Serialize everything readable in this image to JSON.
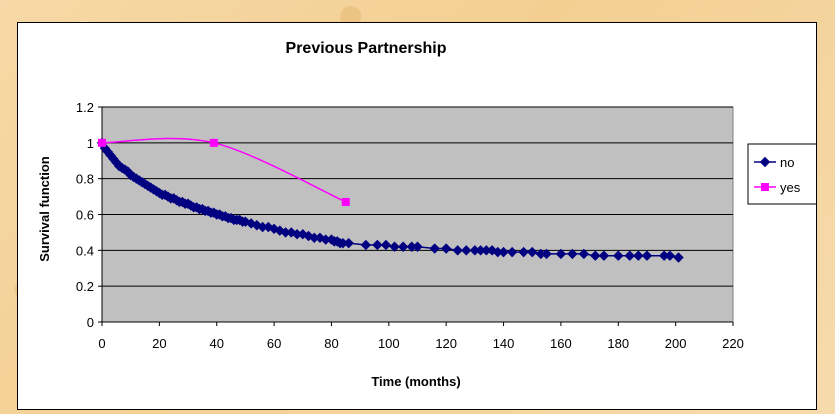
{
  "chart_data": {
    "type": "line",
    "title": "Previous Partnership",
    "xlabel": "Time (months)",
    "ylabel": "Survival function",
    "xlim": [
      0,
      220
    ],
    "ylim": [
      0,
      1.2
    ],
    "x_ticks": [
      0,
      20,
      40,
      60,
      80,
      100,
      120,
      140,
      160,
      180,
      200,
      220
    ],
    "y_ticks": [
      0,
      0.2,
      0.4,
      0.6,
      0.8,
      1,
      1.2
    ],
    "x_tick_labels": [
      "0",
      "20",
      "40",
      "60",
      "80",
      "100",
      "120",
      "140",
      "160",
      "180",
      "200",
      "220"
    ],
    "y_tick_labels": [
      "0",
      "0.2",
      "0.4",
      "0.6",
      "0.8",
      "1",
      "1.2"
    ],
    "grid": "horizontal",
    "plot_background": "#c0c0c0",
    "legend_position": "right",
    "series": [
      {
        "name": "no",
        "color": "#000080",
        "marker": "diamond",
        "smooth": false,
        "x": [
          0,
          1,
          2,
          3,
          4,
          5,
          6,
          7,
          8,
          9,
          10,
          11,
          12,
          13,
          14,
          15,
          16,
          17,
          18,
          19,
          20,
          21,
          22,
          23,
          24,
          25,
          26,
          27,
          28,
          29,
          30,
          31,
          32,
          33,
          34,
          35,
          36,
          37,
          38,
          39,
          40,
          41,
          42,
          43,
          44,
          45,
          46,
          47,
          48,
          49,
          50,
          52,
          54,
          56,
          58,
          60,
          62,
          64,
          66,
          68,
          70,
          72,
          74,
          76,
          78,
          80,
          81,
          82,
          83,
          84,
          86,
          92,
          96,
          99,
          102,
          105,
          108,
          110,
          116,
          120,
          124,
          127,
          130,
          132,
          134,
          136,
          138,
          140,
          143,
          147,
          150,
          153,
          155,
          160,
          164,
          168,
          172,
          175,
          180,
          184,
          187,
          190,
          196,
          198,
          201
        ],
        "values": [
          1.0,
          0.97,
          0.95,
          0.93,
          0.91,
          0.89,
          0.87,
          0.86,
          0.85,
          0.84,
          0.82,
          0.81,
          0.8,
          0.79,
          0.78,
          0.77,
          0.76,
          0.75,
          0.74,
          0.73,
          0.72,
          0.71,
          0.71,
          0.7,
          0.69,
          0.69,
          0.68,
          0.67,
          0.67,
          0.66,
          0.66,
          0.65,
          0.64,
          0.64,
          0.63,
          0.63,
          0.62,
          0.62,
          0.61,
          0.61,
          0.6,
          0.6,
          0.59,
          0.59,
          0.58,
          0.58,
          0.57,
          0.57,
          0.57,
          0.56,
          0.56,
          0.55,
          0.54,
          0.53,
          0.53,
          0.52,
          0.51,
          0.5,
          0.5,
          0.49,
          0.49,
          0.48,
          0.47,
          0.47,
          0.46,
          0.46,
          0.45,
          0.45,
          0.44,
          0.44,
          0.44,
          0.43,
          0.43,
          0.43,
          0.42,
          0.42,
          0.42,
          0.42,
          0.41,
          0.41,
          0.4,
          0.4,
          0.4,
          0.4,
          0.4,
          0.4,
          0.39,
          0.39,
          0.39,
          0.39,
          0.39,
          0.38,
          0.38,
          0.38,
          0.38,
          0.38,
          0.37,
          0.37,
          0.37,
          0.37,
          0.37,
          0.37,
          0.37,
          0.37,
          0.36
        ]
      },
      {
        "name": "yes",
        "color": "#ff00ff",
        "marker": "square",
        "smooth": true,
        "x": [
          0,
          39,
          85
        ],
        "values": [
          1.0,
          1.0,
          0.67
        ]
      }
    ]
  }
}
